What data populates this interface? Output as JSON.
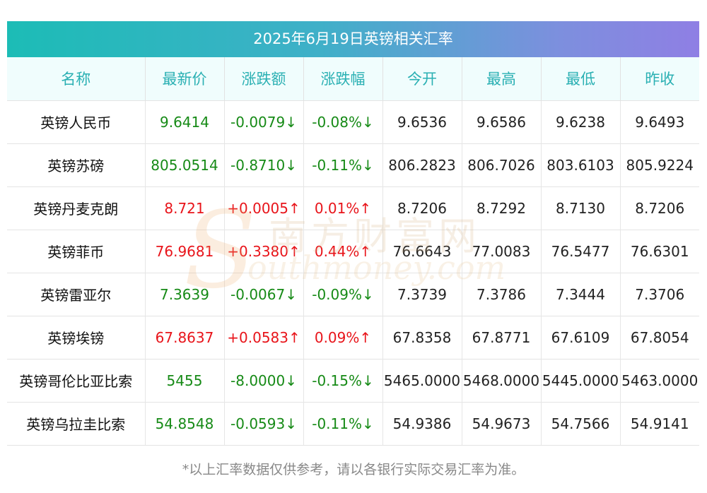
{
  "title": "2025年6月19日英镑相关汇率",
  "headers": [
    "名称",
    "最新价",
    "涨跌额",
    "涨跌幅",
    "今开",
    "最高",
    "最低",
    "昨收"
  ],
  "rows": [
    {
      "name": "英镑人民币",
      "latest": "9.6414",
      "change": "-0.0079↓",
      "pct": "-0.08%↓",
      "open": "9.6536",
      "high": "9.6586",
      "low": "9.6238",
      "prev": "9.6493",
      "dir": "down"
    },
    {
      "name": "英镑苏磅",
      "latest": "805.0514",
      "change": "-0.8710↓",
      "pct": "-0.11%↓",
      "open": "806.2823",
      "high": "806.7026",
      "low": "803.6103",
      "prev": "805.9224",
      "dir": "down"
    },
    {
      "name": "英镑丹麦克朗",
      "latest": "8.721",
      "change": "+0.0005↑",
      "pct": "0.01%↑",
      "open": "8.7206",
      "high": "8.7292",
      "low": "8.7130",
      "prev": "8.7206",
      "dir": "up"
    },
    {
      "name": "英镑菲币",
      "latest": "76.9681",
      "change": "+0.3380↑",
      "pct": "0.44%↑",
      "open": "76.6643",
      "high": "77.0083",
      "low": "76.5477",
      "prev": "76.6301",
      "dir": "up"
    },
    {
      "name": "英镑雷亚尔",
      "latest": "7.3639",
      "change": "-0.0067↓",
      "pct": "-0.09%↓",
      "open": "7.3739",
      "high": "7.3786",
      "low": "7.3444",
      "prev": "7.3706",
      "dir": "down"
    },
    {
      "name": "英镑埃镑",
      "latest": "67.8637",
      "change": "+0.0583↑",
      "pct": "0.09%↑",
      "open": "67.8358",
      "high": "67.8771",
      "low": "67.6109",
      "prev": "67.8054",
      "dir": "up"
    },
    {
      "name": "英镑哥伦比亚比索",
      "latest": "5455",
      "change": "-8.0000↓",
      "pct": "-0.15%↓",
      "open": "5465.0000",
      "high": "5468.0000",
      "low": "5445.0000",
      "prev": "5463.0000",
      "dir": "down"
    },
    {
      "name": "英镑乌拉圭比索",
      "latest": "54.8548",
      "change": "-0.0593↓",
      "pct": "-0.11%↓",
      "open": "54.9386",
      "high": "54.9673",
      "low": "54.7566",
      "prev": "54.9141",
      "dir": "down"
    }
  ],
  "note": "*以上汇率数据仅供参考，请以各银行实际交易汇率为准。",
  "watermark": {
    "logo_letter": "S",
    "cn": "南方财富网",
    "en": "outhmoney.com"
  },
  "colors": {
    "up": "#e8141a",
    "down": "#168a16",
    "header_text": "#2ab0b3",
    "title_start": "#1cbcb6",
    "title_end": "#8f7fe4"
  }
}
